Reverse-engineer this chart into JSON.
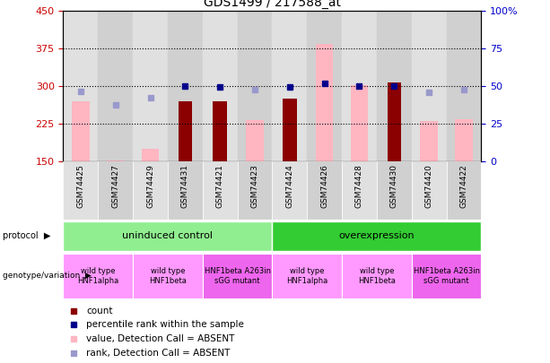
{
  "title": "GDS1499 / 217588_at",
  "samples": [
    "GSM74425",
    "GSM74427",
    "GSM74429",
    "GSM74431",
    "GSM74421",
    "GSM74423",
    "GSM74424",
    "GSM74426",
    "GSM74428",
    "GSM74430",
    "GSM74420",
    "GSM74422"
  ],
  "count": [
    null,
    null,
    null,
    270,
    270,
    null,
    275,
    null,
    null,
    308,
    null,
    null
  ],
  "pink_bar": [
    270,
    152,
    175,
    null,
    null,
    232,
    null,
    385,
    302,
    null,
    230,
    235
  ],
  "blue_dot": [
    290,
    262,
    278,
    300,
    298,
    293,
    298,
    305,
    300,
    300,
    288,
    293
  ],
  "blue_dot_absent": [
    true,
    true,
    true,
    false,
    false,
    true,
    false,
    false,
    false,
    false,
    true,
    true
  ],
  "ylim": [
    150,
    450
  ],
  "y2lim": [
    0,
    100
  ],
  "yticks": [
    150,
    225,
    300,
    375,
    450
  ],
  "y2ticks": [
    0,
    25,
    50,
    75,
    100
  ],
  "protocol_groups": [
    {
      "label": "uninduced control",
      "start": 0,
      "end": 6,
      "color": "#90EE90"
    },
    {
      "label": "overexpression",
      "start": 6,
      "end": 12,
      "color": "#33CC33"
    }
  ],
  "genotype_groups": [
    {
      "label": "wild type\nHNF1alpha",
      "start": 0,
      "end": 2,
      "color": "#FF99FF"
    },
    {
      "label": "wild type\nHNF1beta",
      "start": 2,
      "end": 4,
      "color": "#FF99FF"
    },
    {
      "label": "HNF1beta A263in\nsGG mutant",
      "start": 4,
      "end": 6,
      "color": "#EE66EE"
    },
    {
      "label": "wild type\nHNF1alpha",
      "start": 6,
      "end": 8,
      "color": "#FF99FF"
    },
    {
      "label": "wild type\nHNF1beta",
      "start": 8,
      "end": 10,
      "color": "#FF99FF"
    },
    {
      "label": "HNF1beta A263in\nsGG mutant",
      "start": 10,
      "end": 12,
      "color": "#EE66EE"
    }
  ],
  "dark_red": "#8B0000",
  "pink": "#FFB6C1",
  "dark_blue": "#00008B",
  "light_blue": "#9999CC",
  "ax_label_color_left": "#CC0000",
  "ax_label_color_right": "#0000CC",
  "col_bg_even": "#E0E0E0",
  "col_bg_odd": "#D0D0D0"
}
